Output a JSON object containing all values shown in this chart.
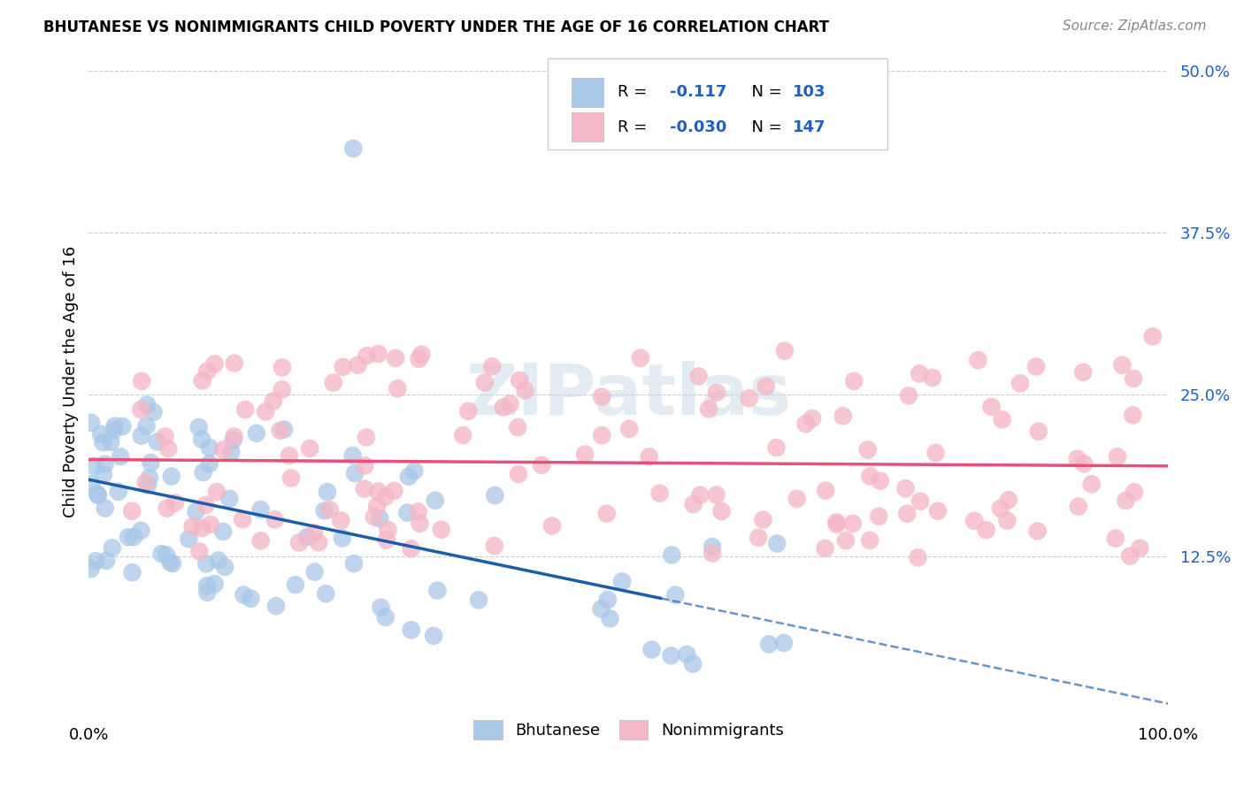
{
  "title": "BHUTANESE VS NONIMMIGRANTS CHILD POVERTY UNDER THE AGE OF 16 CORRELATION CHART",
  "source": "Source: ZipAtlas.com",
  "ylabel": "Child Poverty Under the Age of 16",
  "xlim": [
    0.0,
    1.0
  ],
  "ylim": [
    0.0,
    0.52
  ],
  "yticks": [
    0.0,
    0.125,
    0.25,
    0.375,
    0.5
  ],
  "ytick_labels": [
    "",
    "12.5%",
    "25.0%",
    "37.5%",
    "50.0%"
  ],
  "xtick_labels": [
    "0.0%",
    "100.0%"
  ],
  "xticks": [
    0.0,
    1.0
  ],
  "bhutanese_color": "#a8c8e8",
  "nonimmigrant_color": "#f4b8c8",
  "bhutanese_line_color": "#1a5da8",
  "nonimmigrant_line_color": "#e8507a",
  "R_bhutanese": -0.117,
  "N_bhutanese": 103,
  "R_nonimmigrant": -0.03,
  "N_nonimmigrant": 147,
  "legend_label_bhutanese": "Bhutanese",
  "legend_label_nonimmigrant": "Nonimmigrants",
  "watermark": "ZIPatlas",
  "background_color": "#ffffff",
  "grid_color": "#cccccc",
  "blue_text_color": "#2060c0",
  "title_fontsize": 12,
  "axis_fontsize": 13,
  "source_fontsize": 11
}
